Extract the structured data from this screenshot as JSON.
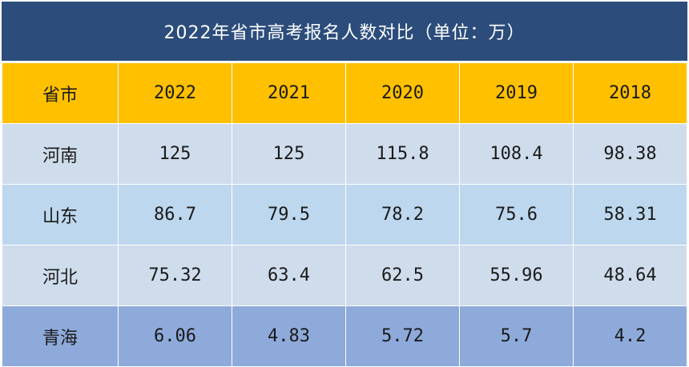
{
  "chart_data": {
    "type": "table",
    "title": "2022年省市高考报名人数对比（单位：万）",
    "columns": [
      "省市",
      "2022",
      "2021",
      "2020",
      "2019",
      "2018"
    ],
    "rows": [
      {
        "province": "河南",
        "values": [
          "125",
          "125",
          "115.8",
          "108.4",
          "98.38"
        ]
      },
      {
        "province": "山东",
        "values": [
          "86.7",
          "79.5",
          "78.2",
          "75.6",
          "58.31"
        ]
      },
      {
        "province": "河北",
        "values": [
          "75.32",
          "63.4",
          "62.5",
          "55.96",
          "48.64"
        ]
      },
      {
        "province": "青海",
        "values": [
          "6.06",
          "4.83",
          "5.72",
          "5.7",
          "4.2"
        ]
      }
    ]
  },
  "colors": {
    "title_bg": "#2c4d7b",
    "header_bg": "#ffc000",
    "row_light": "#cfdcec",
    "row_blue": "#bdd7ee",
    "row_highlight": "#8eaadb"
  }
}
